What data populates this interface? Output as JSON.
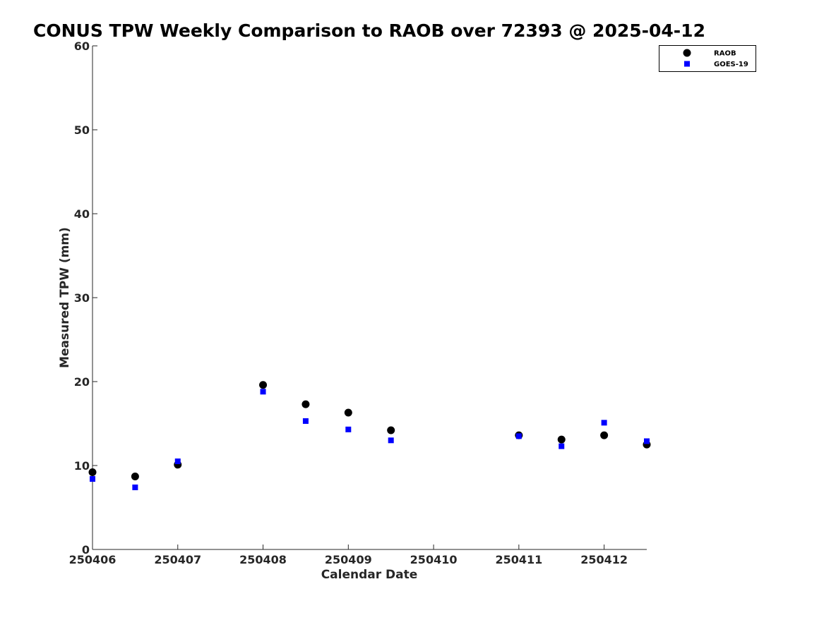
{
  "chart_data": {
    "type": "scatter",
    "title": "CONUS TPW Weekly Comparison to RAOB over 72393 @ 2025-04-12",
    "xlabel": "Calendar Date",
    "ylabel": "Measured TPW (mm)",
    "xlim": [
      250406,
      250412.5
    ],
    "ylim": [
      0,
      60
    ],
    "xticks": [
      250406,
      250407,
      250408,
      250409,
      250410,
      250411,
      250412
    ],
    "xtick_labels": [
      "250406",
      "250407",
      "250408",
      "250409",
      "250410",
      "250411",
      "250412"
    ],
    "yticks": [
      0,
      10,
      20,
      30,
      40,
      50,
      60
    ],
    "ytick_labels": [
      "0",
      "10",
      "20",
      "30",
      "40",
      "50",
      "60"
    ],
    "grid": false,
    "legend_position": "top-right",
    "series": [
      {
        "name": "RAOB",
        "marker": "circle",
        "color": "#000000",
        "x": [
          250406,
          250406.5,
          250407,
          250408,
          250408.5,
          250409,
          250409.5,
          250411,
          250411.5,
          250412,
          250412.5
        ],
        "y": [
          9.2,
          8.7,
          10.1,
          19.6,
          17.3,
          16.3,
          14.2,
          13.6,
          13.1,
          13.6,
          12.5
        ]
      },
      {
        "name": "GOES-19",
        "marker": "square",
        "color": "#0000ff",
        "x": [
          250406,
          250406.5,
          250407,
          250408,
          250408.5,
          250409,
          250409.5,
          250411,
          250411.5,
          250412,
          250412.5
        ],
        "y": [
          8.4,
          7.4,
          10.5,
          18.8,
          15.3,
          14.3,
          13.0,
          13.5,
          12.3,
          15.1,
          12.9
        ]
      }
    ]
  }
}
